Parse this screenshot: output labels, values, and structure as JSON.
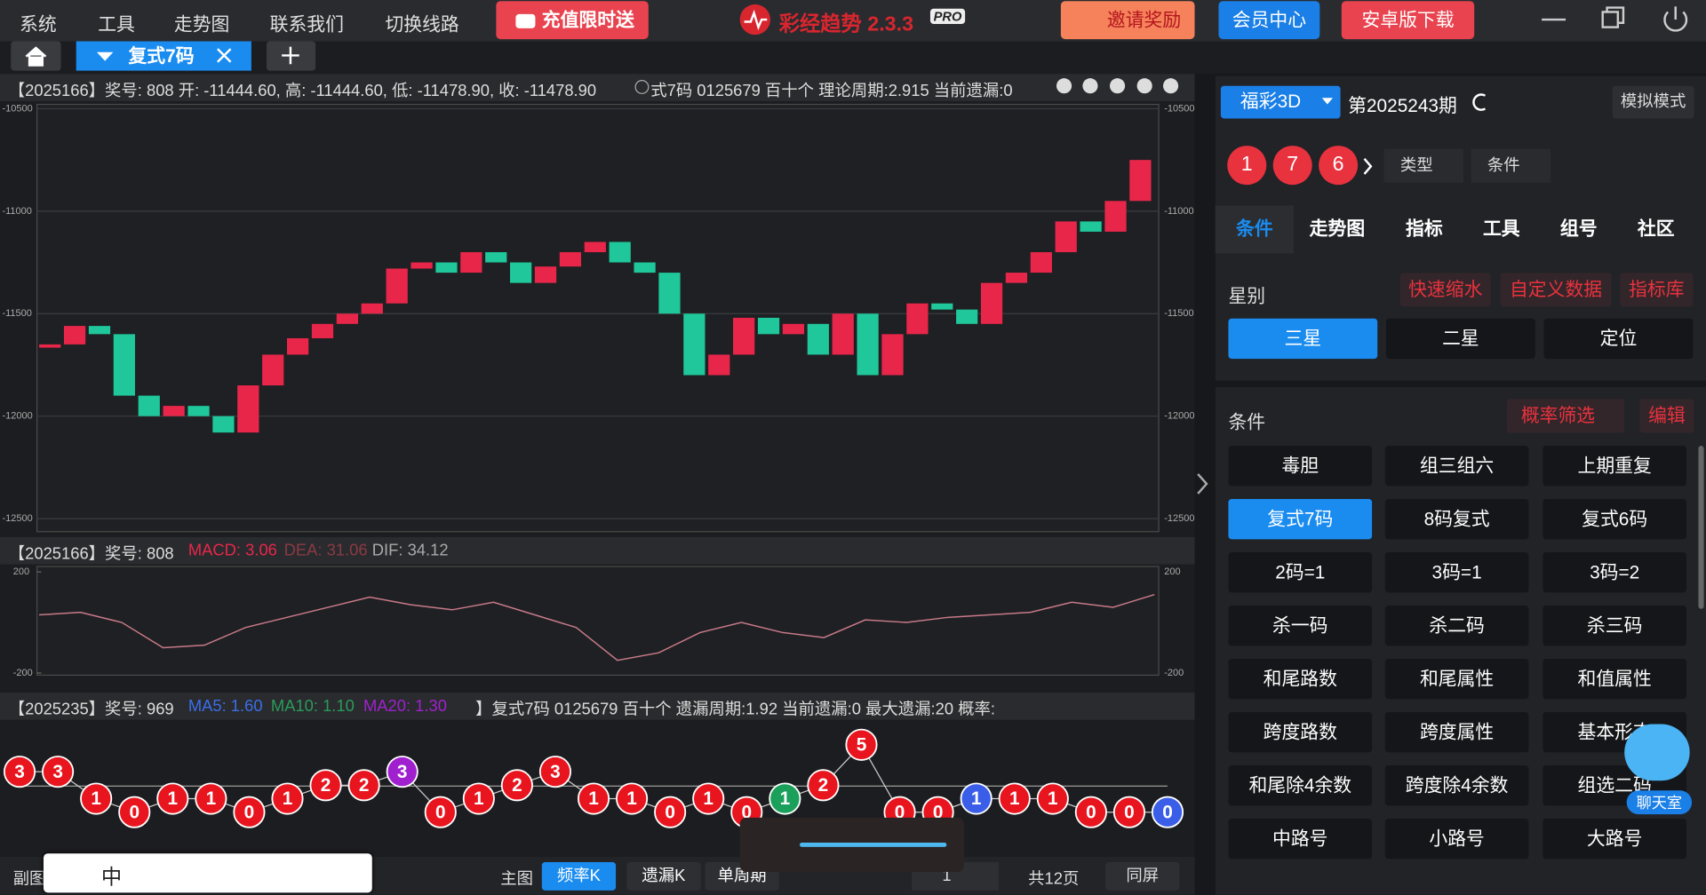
{
  "menu": [
    "系统",
    "工具",
    "走势图",
    "联系我们",
    "切换线路"
  ],
  "promo": "充值限时送",
  "app": {
    "name": "彩经趋势 2.3.3",
    "badge": "PRO"
  },
  "top_buttons": [
    "邀请奖励",
    "会员中心",
    "安卓版下载"
  ],
  "tab": "复式7码",
  "main_info": "【2025166】奖号: 808  开: -11444.60, 高: -11444.60, 低: -11478.90, 收: -11478.90",
  "main_info_2": "式7码  0125679  百十个  理论周期:2.915  当前遗漏:0",
  "main_chart": {
    "type": "renko",
    "ylim": [
      -12500,
      -10500
    ],
    "yticks": [
      -10500,
      -11000,
      -11500,
      -12000,
      -12500
    ],
    "values": [
      -11650,
      -11560,
      -11600,
      -11900,
      -12000,
      -11950,
      -12000,
      -12080,
      -11850,
      -11700,
      -11620,
      -11550,
      -11500,
      -11450,
      -11280,
      -11250,
      -11300,
      -11200,
      -11250,
      -11350,
      -11270,
      -11200,
      -11150,
      -11250,
      -11300,
      -11500,
      -11800,
      -11700,
      -11520,
      -11600,
      -11550,
      -11700,
      -11500,
      -11800,
      -11600,
      -11450,
      -11480,
      -11550,
      -11350,
      -11300,
      -11200,
      -11050,
      -11100,
      -10950,
      -10750
    ]
  },
  "macd_info": {
    "head": "【2025166】奖号: 808",
    "macd": "MACD: 3.06",
    "dea": "DEA: 31.06",
    "dif": "DIF: 34.12"
  },
  "macd_chart": {
    "type": "line",
    "ylim": [
      -200,
      200
    ],
    "yticks": [
      200,
      -200
    ],
    "color": "#c87a8a",
    "values": [
      30,
      40,
      0,
      -100,
      -90,
      -20,
      20,
      60,
      100,
      70,
      50,
      80,
      30,
      -20,
      -150,
      -120,
      -40,
      0,
      -40,
      -60,
      10,
      0,
      20,
      30,
      40,
      80,
      60,
      110
    ]
  },
  "ma_info": {
    "head": "【2025235】奖号: 969",
    "ma5": "MA5: 1.60",
    "ma10": "MA10: 1.10",
    "ma20": "MA20: 1.30",
    "tail": "】复式7码  0125679  百十个  遗漏周期:1.92  当前遗漏:0  最大遗漏:20  概率:"
  },
  "ball_chart": {
    "type": "ball",
    "values": [
      3,
      3,
      1,
      0,
      1,
      1,
      0,
      1,
      2,
      2,
      3,
      0,
      1,
      2,
      3,
      1,
      1,
      0,
      1,
      0,
      1,
      2,
      5,
      0,
      0,
      1,
      1,
      1,
      0,
      0,
      0
    ],
    "colors": [
      "#e8141e",
      "#e8141e",
      "#e8141e",
      "#e8141e",
      "#e8141e",
      "#e8141e",
      "#e8141e",
      "#e8141e",
      "#e8141e",
      "#e8141e",
      "#a020d0",
      "#e8141e",
      "#e8141e",
      "#e8141e",
      "#e8141e",
      "#e8141e",
      "#e8141e",
      "#e8141e",
      "#e8141e",
      "#e8141e",
      "#1aa05a",
      "#e8141e",
      "#e8141e",
      "#e8141e",
      "#e8141e",
      "#3a5ee8",
      "#e8141e",
      "#e8141e",
      "#e8141e",
      "#e8141e",
      "#3a5ee8"
    ]
  },
  "bottom": {
    "sub": "副图",
    "main": "主图",
    "tabs": [
      "频率K",
      "遗漏K",
      "单周期"
    ],
    "page": "1",
    "total": "共12页",
    "same": "同屏"
  },
  "ime": "中",
  "right": {
    "lottery": "福彩3D",
    "issue": "第2025243期",
    "mode": "模拟模式",
    "balls": [
      "1",
      "7",
      "6"
    ],
    "selects": [
      "类型",
      "条件"
    ],
    "tabs": [
      "条件",
      "走势图",
      "指标",
      "工具",
      "组号",
      "社区"
    ],
    "star_label": "星别",
    "links": [
      "快速缩水",
      "自定义数据",
      "指标库"
    ],
    "stars": [
      "三星",
      "二星",
      "定位"
    ],
    "cond_label": "条件",
    "filter": "概率筛选",
    "edit": "编辑",
    "grid": [
      "毒胆",
      "组三组六",
      "上期重复",
      "复式7码",
      "8码复式",
      "复式6码",
      "2码=1",
      "3码=1",
      "3码=2",
      "杀一码",
      "杀二码",
      "杀三码",
      "和尾路数",
      "和尾属性",
      "和值属性",
      "跨度路数",
      "跨度属性",
      "基本形态",
      "和尾除4余数",
      "跨度除4余数",
      "组选二码",
      "中路号",
      "小路号",
      "大路号"
    ],
    "chat": "聊天室"
  }
}
